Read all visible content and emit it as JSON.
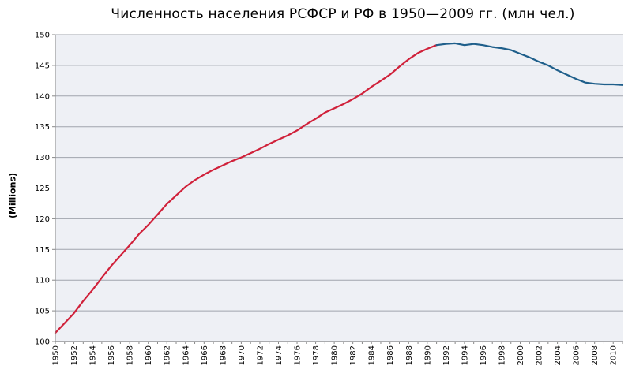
{
  "chart_data": {
    "type": "line",
    "title": "Численность населения РСФСР и РФ в 1950—2009 гг. (млн чел.)",
    "ylabel": "(Millions)",
    "xlabel": "",
    "xlim": [
      1950,
      2011
    ],
    "ylim": [
      100,
      150
    ],
    "yticks": [
      100,
      105,
      110,
      115,
      120,
      125,
      130,
      135,
      140,
      145,
      150
    ],
    "xticks": [
      1950,
      1952,
      1954,
      1956,
      1958,
      1960,
      1962,
      1964,
      1966,
      1968,
      1970,
      1972,
      1974,
      1976,
      1978,
      1980,
      1982,
      1984,
      1986,
      1988,
      1990,
      1992,
      1994,
      1996,
      1998,
      2000,
      2002,
      2004,
      2006,
      2008,
      2010
    ],
    "grid": true,
    "legend": "none",
    "series": [
      {
        "color": "#d0213a",
        "x": [
          1950,
          1951,
          1952,
          1953,
          1954,
          1955,
          1956,
          1957,
          1958,
          1959,
          1960,
          1961,
          1962,
          1963,
          1964,
          1965,
          1966,
          1967,
          1968,
          1969,
          1970,
          1971,
          1972,
          1973,
          1974,
          1975,
          1976,
          1977,
          1978,
          1979,
          1980,
          1981,
          1982,
          1983,
          1984,
          1985,
          1986,
          1987,
          1988,
          1989,
          1990,
          1991
        ],
        "values": [
          101.4,
          103.0,
          104.6,
          106.6,
          108.4,
          110.4,
          112.3,
          114.0,
          115.7,
          117.5,
          119.0,
          120.7,
          122.4,
          123.8,
          125.2,
          126.3,
          127.2,
          128.0,
          128.7,
          129.4,
          130.0,
          130.7,
          131.4,
          132.2,
          132.9,
          133.6,
          134.4,
          135.4,
          136.3,
          137.3,
          138.0,
          138.7,
          139.5,
          140.4,
          141.5,
          142.5,
          143.5,
          144.8,
          146.0,
          147.0,
          147.7,
          148.3
        ]
      },
      {
        "color": "#1f5f8b",
        "x": [
          1991,
          1992,
          1993,
          1994,
          1995,
          1996,
          1997,
          1998,
          1999,
          2000,
          2001,
          2002,
          2003,
          2004,
          2005,
          2006,
          2007,
          2008,
          2009,
          2010,
          2011
        ],
        "values": [
          148.3,
          148.5,
          148.6,
          148.3,
          148.5,
          148.3,
          148.0,
          147.8,
          147.5,
          146.9,
          146.3,
          145.6,
          145.0,
          144.2,
          143.5,
          142.8,
          142.2,
          142.0,
          141.9,
          141.9,
          141.8
        ]
      }
    ]
  }
}
